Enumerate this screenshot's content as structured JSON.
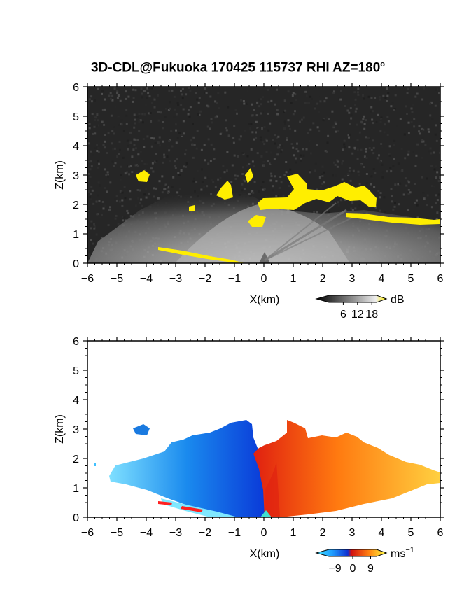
{
  "title": {
    "main": "3D-CDL@Fukuoka 170425 115737 RHI AZ=180",
    "degree": "o"
  },
  "colors": {
    "echo_yellow": "#ffee00",
    "background_dark": "#222222",
    "velocity_negative": "#1060e0",
    "velocity_positive": "#f05010"
  },
  "chart_data": [
    {
      "type": "heatmap",
      "name": "reflectivity",
      "xlabel": "X(km)",
      "ylabel": "Z(km)",
      "xlim": [
        -6,
        6
      ],
      "ylim": [
        0,
        6
      ],
      "xticks": [
        "-6",
        "-5",
        "-4",
        "-3",
        "-2",
        "-1",
        "0",
        "1",
        "2",
        "3",
        "4",
        "5",
        "6"
      ],
      "yticks": [
        "0",
        "1",
        "2",
        "3",
        "4",
        "5",
        "6"
      ],
      "colorbar": {
        "unit": "dB",
        "ticks": [
          "6",
          "12",
          "18"
        ],
        "range": [
          0,
          20
        ]
      },
      "grid": false
    },
    {
      "type": "heatmap",
      "name": "doppler_velocity",
      "xlabel": "X(km)",
      "ylabel": "Z(km)",
      "xlim": [
        -6,
        6
      ],
      "ylim": [
        0,
        6
      ],
      "xticks": [
        "-6",
        "-5",
        "-4",
        "-3",
        "-2",
        "-1",
        "0",
        "1",
        "2",
        "3",
        "4",
        "5",
        "6"
      ],
      "yticks": [
        "0",
        "1",
        "2",
        "3",
        "4",
        "5",
        "6"
      ],
      "colorbar": {
        "unit": "ms",
        "unit_exp": "−1",
        "ticks": [
          "−9",
          "0",
          "9"
        ],
        "range": [
          -12,
          12
        ]
      },
      "grid": false
    }
  ]
}
